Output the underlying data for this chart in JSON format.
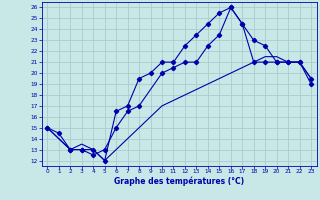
{
  "xlabel": "Graphe des températures (°C)",
  "bg_color": "#c8e8e8",
  "grid_color": "#aacccc",
  "line_color": "#0000aa",
  "xlim": [
    -0.5,
    23.5
  ],
  "ylim": [
    11.5,
    26.5
  ],
  "xticks": [
    0,
    1,
    2,
    3,
    4,
    5,
    6,
    7,
    8,
    9,
    10,
    11,
    12,
    13,
    14,
    15,
    16,
    17,
    18,
    19,
    20,
    21,
    22,
    23
  ],
  "yticks": [
    12,
    13,
    14,
    15,
    16,
    17,
    18,
    19,
    20,
    21,
    22,
    23,
    24,
    25,
    26
  ],
  "line_upper_x": [
    0,
    1,
    2,
    3,
    4,
    5,
    6,
    7,
    8,
    9,
    10,
    11,
    12,
    13,
    14,
    15,
    16,
    17,
    18,
    19,
    20,
    21,
    22,
    23
  ],
  "line_upper_y": [
    15.0,
    14.5,
    13.0,
    13.0,
    13.0,
    12.0,
    16.5,
    17.0,
    19.5,
    20.0,
    21.0,
    21.0,
    22.5,
    23.5,
    24.5,
    25.5,
    26.0,
    24.5,
    23.0,
    22.5,
    21.0,
    21.0,
    21.0,
    19.5
  ],
  "line_mid_x": [
    0,
    2,
    3,
    4,
    5,
    6,
    7,
    8,
    10,
    11,
    12,
    13,
    14,
    15,
    16,
    17,
    18,
    19,
    20,
    21,
    22,
    23
  ],
  "line_mid_y": [
    15.0,
    13.0,
    13.0,
    12.5,
    13.0,
    15.0,
    16.5,
    17.0,
    20.0,
    20.5,
    21.0,
    21.0,
    22.5,
    23.5,
    26.0,
    24.5,
    21.0,
    21.0,
    21.0,
    21.0,
    21.0,
    19.0
  ],
  "line_low_x": [
    0,
    2,
    3,
    4,
    5,
    10,
    11,
    12,
    13,
    14,
    15,
    16,
    17,
    18,
    19,
    20,
    21,
    22,
    23
  ],
  "line_low_y": [
    15.0,
    13.0,
    13.5,
    13.0,
    12.0,
    17.0,
    17.5,
    18.0,
    18.5,
    19.0,
    19.5,
    20.0,
    20.5,
    21.0,
    21.5,
    21.5,
    21.0,
    21.0,
    19.5
  ]
}
